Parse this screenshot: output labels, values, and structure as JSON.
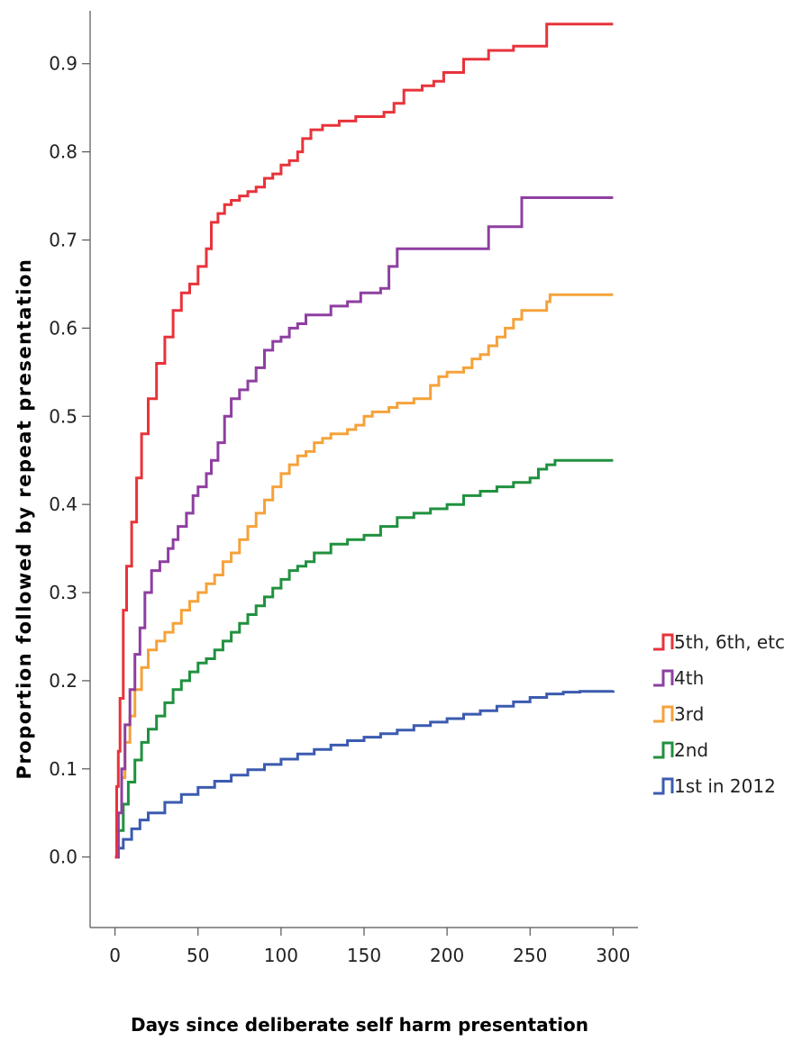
{
  "chart_data": {
    "type": "line",
    "step": true,
    "title": "",
    "xlabel": "Days since deliberate self harm presentation",
    "ylabel": "Proportion followed by repeat presentation",
    "xlim": [
      -15,
      315
    ],
    "ylim": [
      -0.08,
      0.96
    ],
    "xticks": [
      0,
      50,
      100,
      150,
      200,
      250,
      300
    ],
    "yticks": [
      0.0,
      0.1,
      0.2,
      0.3,
      0.4,
      0.5,
      0.6,
      0.7,
      0.8,
      0.9
    ],
    "ytick_labels": [
      "0.0",
      "0.1",
      "0.2",
      "0.3",
      "0.4",
      "0.5",
      "0.6",
      "0.7",
      "0.8",
      "0.9"
    ],
    "grid": false,
    "legend_position": "right",
    "series": [
      {
        "name": "5th, 6th, etc",
        "color": "#e8333a",
        "points": [
          [
            0,
            0
          ],
          [
            1,
            0.08
          ],
          [
            2,
            0.12
          ],
          [
            3,
            0.18
          ],
          [
            5,
            0.28
          ],
          [
            7,
            0.33
          ],
          [
            10,
            0.38
          ],
          [
            13,
            0.43
          ],
          [
            16,
            0.48
          ],
          [
            20,
            0.52
          ],
          [
            25,
            0.56
          ],
          [
            30,
            0.59
          ],
          [
            35,
            0.62
          ],
          [
            40,
            0.64
          ],
          [
            45,
            0.65
          ],
          [
            50,
            0.67
          ],
          [
            55,
            0.69
          ],
          [
            58,
            0.72
          ],
          [
            62,
            0.73
          ],
          [
            66,
            0.74
          ],
          [
            70,
            0.745
          ],
          [
            75,
            0.75
          ],
          [
            80,
            0.755
          ],
          [
            85,
            0.76
          ],
          [
            90,
            0.77
          ],
          [
            95,
            0.775
          ],
          [
            100,
            0.785
          ],
          [
            105,
            0.79
          ],
          [
            110,
            0.8
          ],
          [
            113,
            0.815
          ],
          [
            118,
            0.825
          ],
          [
            125,
            0.83
          ],
          [
            135,
            0.835
          ],
          [
            145,
            0.84
          ],
          [
            155,
            0.84
          ],
          [
            162,
            0.845
          ],
          [
            168,
            0.855
          ],
          [
            174,
            0.87
          ],
          [
            185,
            0.875
          ],
          [
            192,
            0.88
          ],
          [
            198,
            0.89
          ],
          [
            210,
            0.905
          ],
          [
            225,
            0.915
          ],
          [
            240,
            0.92
          ],
          [
            260,
            0.945
          ],
          [
            300,
            0.945
          ]
        ]
      },
      {
        "name": "4th",
        "color": "#8e3fa0",
        "points": [
          [
            0,
            0
          ],
          [
            2,
            0.05
          ],
          [
            4,
            0.1
          ],
          [
            6,
            0.15
          ],
          [
            9,
            0.19
          ],
          [
            12,
            0.23
          ],
          [
            15,
            0.26
          ],
          [
            18,
            0.3
          ],
          [
            22,
            0.325
          ],
          [
            27,
            0.335
          ],
          [
            32,
            0.35
          ],
          [
            35,
            0.36
          ],
          [
            38,
            0.375
          ],
          [
            43,
            0.39
          ],
          [
            47,
            0.41
          ],
          [
            50,
            0.42
          ],
          [
            55,
            0.435
          ],
          [
            58,
            0.45
          ],
          [
            62,
            0.47
          ],
          [
            66,
            0.5
          ],
          [
            70,
            0.52
          ],
          [
            75,
            0.53
          ],
          [
            80,
            0.54
          ],
          [
            85,
            0.555
          ],
          [
            90,
            0.575
          ],
          [
            95,
            0.585
          ],
          [
            100,
            0.59
          ],
          [
            105,
            0.6
          ],
          [
            110,
            0.605
          ],
          [
            115,
            0.615
          ],
          [
            130,
            0.625
          ],
          [
            140,
            0.63
          ],
          [
            148,
            0.64
          ],
          [
            160,
            0.645
          ],
          [
            165,
            0.67
          ],
          [
            170,
            0.69
          ],
          [
            190,
            0.69
          ],
          [
            222,
            0.69
          ],
          [
            225,
            0.715
          ],
          [
            243,
            0.715
          ],
          [
            245,
            0.748
          ],
          [
            300,
            0.748
          ]
        ]
      },
      {
        "name": "3rd",
        "color": "#f5a23a",
        "points": [
          [
            0,
            0
          ],
          [
            2,
            0.05
          ],
          [
            4,
            0.09
          ],
          [
            6,
            0.13
          ],
          [
            9,
            0.16
          ],
          [
            12,
            0.19
          ],
          [
            16,
            0.215
          ],
          [
            20,
            0.235
          ],
          [
            25,
            0.245
          ],
          [
            30,
            0.255
          ],
          [
            35,
            0.265
          ],
          [
            40,
            0.28
          ],
          [
            45,
            0.29
          ],
          [
            50,
            0.3
          ],
          [
            55,
            0.31
          ],
          [
            60,
            0.32
          ],
          [
            65,
            0.335
          ],
          [
            70,
            0.345
          ],
          [
            75,
            0.36
          ],
          [
            80,
            0.375
          ],
          [
            85,
            0.39
          ],
          [
            90,
            0.405
          ],
          [
            95,
            0.42
          ],
          [
            100,
            0.435
          ],
          [
            105,
            0.445
          ],
          [
            110,
            0.455
          ],
          [
            115,
            0.46
          ],
          [
            120,
            0.47
          ],
          [
            125,
            0.475
          ],
          [
            130,
            0.48
          ],
          [
            140,
            0.485
          ],
          [
            145,
            0.49
          ],
          [
            150,
            0.5
          ],
          [
            155,
            0.505
          ],
          [
            165,
            0.51
          ],
          [
            170,
            0.515
          ],
          [
            180,
            0.52
          ],
          [
            190,
            0.535
          ],
          [
            195,
            0.545
          ],
          [
            200,
            0.55
          ],
          [
            210,
            0.555
          ],
          [
            215,
            0.565
          ],
          [
            220,
            0.57
          ],
          [
            225,
            0.58
          ],
          [
            230,
            0.59
          ],
          [
            235,
            0.6
          ],
          [
            240,
            0.61
          ],
          [
            245,
            0.62
          ],
          [
            260,
            0.63
          ],
          [
            262,
            0.638
          ],
          [
            300,
            0.638
          ]
        ]
      },
      {
        "name": "2nd",
        "color": "#20913f",
        "points": [
          [
            0,
            0
          ],
          [
            2,
            0.03
          ],
          [
            5,
            0.06
          ],
          [
            8,
            0.085
          ],
          [
            12,
            0.11
          ],
          [
            16,
            0.13
          ],
          [
            20,
            0.145
          ],
          [
            25,
            0.16
          ],
          [
            30,
            0.175
          ],
          [
            35,
            0.19
          ],
          [
            40,
            0.2
          ],
          [
            45,
            0.21
          ],
          [
            50,
            0.22
          ],
          [
            55,
            0.225
          ],
          [
            60,
            0.235
          ],
          [
            65,
            0.245
          ],
          [
            70,
            0.255
          ],
          [
            75,
            0.265
          ],
          [
            80,
            0.275
          ],
          [
            85,
            0.285
          ],
          [
            90,
            0.295
          ],
          [
            95,
            0.305
          ],
          [
            100,
            0.315
          ],
          [
            105,
            0.325
          ],
          [
            110,
            0.33
          ],
          [
            115,
            0.335
          ],
          [
            120,
            0.345
          ],
          [
            130,
            0.355
          ],
          [
            140,
            0.36
          ],
          [
            150,
            0.365
          ],
          [
            160,
            0.375
          ],
          [
            170,
            0.385
          ],
          [
            180,
            0.39
          ],
          [
            190,
            0.395
          ],
          [
            200,
            0.4
          ],
          [
            210,
            0.41
          ],
          [
            220,
            0.415
          ],
          [
            230,
            0.42
          ],
          [
            240,
            0.425
          ],
          [
            250,
            0.43
          ],
          [
            255,
            0.44
          ],
          [
            260,
            0.445
          ],
          [
            265,
            0.45
          ],
          [
            300,
            0.45
          ]
        ]
      },
      {
        "name": "1st in 2012",
        "color": "#3b5bb0",
        "points": [
          [
            0,
            0
          ],
          [
            2,
            0.01
          ],
          [
            5,
            0.02
          ],
          [
            10,
            0.032
          ],
          [
            15,
            0.042
          ],
          [
            20,
            0.05
          ],
          [
            30,
            0.062
          ],
          [
            40,
            0.071
          ],
          [
            50,
            0.079
          ],
          [
            60,
            0.086
          ],
          [
            70,
            0.093
          ],
          [
            80,
            0.099
          ],
          [
            90,
            0.105
          ],
          [
            100,
            0.111
          ],
          [
            110,
            0.117
          ],
          [
            120,
            0.122
          ],
          [
            130,
            0.127
          ],
          [
            140,
            0.132
          ],
          [
            150,
            0.136
          ],
          [
            160,
            0.14
          ],
          [
            170,
            0.144
          ],
          [
            180,
            0.149
          ],
          [
            190,
            0.153
          ],
          [
            200,
            0.157
          ],
          [
            210,
            0.162
          ],
          [
            220,
            0.166
          ],
          [
            230,
            0.171
          ],
          [
            240,
            0.176
          ],
          [
            250,
            0.181
          ],
          [
            260,
            0.185
          ],
          [
            270,
            0.187
          ],
          [
            280,
            0.188
          ],
          [
            300,
            0.189
          ]
        ]
      }
    ]
  }
}
